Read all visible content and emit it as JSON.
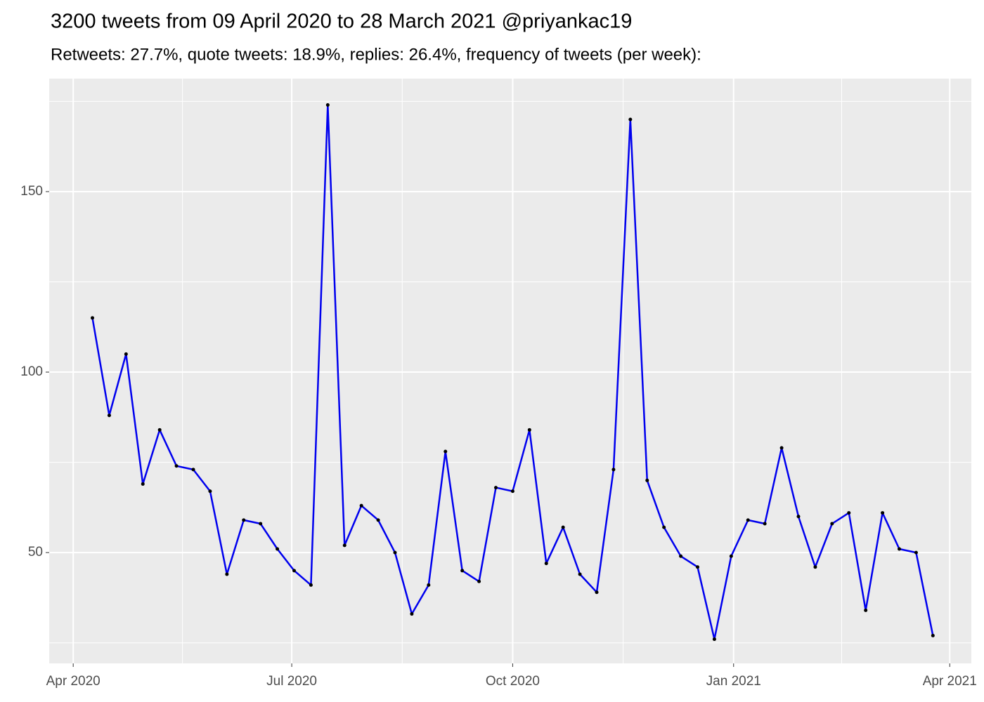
{
  "chart_data": {
    "type": "line",
    "title": "3200 tweets from 09 April 2020 to 28 March 2021 @priyankac19",
    "subtitle": "Retweets: 27.7%, quote tweets: 18.9%, replies: 26.4%, frequency of tweets (per week):",
    "x": [
      "2020-04-09",
      "2020-04-16",
      "2020-04-23",
      "2020-04-30",
      "2020-05-07",
      "2020-05-14",
      "2020-05-21",
      "2020-05-28",
      "2020-06-04",
      "2020-06-11",
      "2020-06-18",
      "2020-06-25",
      "2020-07-02",
      "2020-07-09",
      "2020-07-16",
      "2020-07-23",
      "2020-07-30",
      "2020-08-06",
      "2020-08-13",
      "2020-08-20",
      "2020-08-27",
      "2020-09-03",
      "2020-09-10",
      "2020-09-17",
      "2020-09-24",
      "2020-10-01",
      "2020-10-08",
      "2020-10-15",
      "2020-10-22",
      "2020-10-29",
      "2020-11-05",
      "2020-11-12",
      "2020-11-19",
      "2020-11-26",
      "2020-12-03",
      "2020-12-10",
      "2020-12-17",
      "2020-12-24",
      "2020-12-31",
      "2021-01-07",
      "2021-01-14",
      "2021-01-21",
      "2021-01-28",
      "2021-02-04",
      "2021-02-11",
      "2021-02-18",
      "2021-02-25",
      "2021-03-04",
      "2021-03-11",
      "2021-03-18",
      "2021-03-25"
    ],
    "series": [
      {
        "color": "#0000ee",
        "point_color": "#000000",
        "values": [
          115,
          88,
          105,
          69,
          84,
          74,
          73,
          67,
          44,
          59,
          58,
          51,
          45,
          41,
          174,
          52,
          63,
          59,
          50,
          33,
          41,
          78,
          45,
          42,
          68,
          67,
          84,
          47,
          57,
          44,
          39,
          73,
          170,
          70,
          57,
          49,
          46,
          26,
          49,
          59,
          58,
          79,
          60,
          46,
          58,
          61,
          34,
          61,
          51,
          50,
          27
        ]
      }
    ],
    "xlim": [
      "2020-03-22",
      "2021-04-10"
    ],
    "xticks": [
      {
        "value": "2020-04-01",
        "label": "Apr 2020"
      },
      {
        "value": "2020-07-01",
        "label": "Jul 2020"
      },
      {
        "value": "2020-10-01",
        "label": "Oct 2020"
      },
      {
        "value": "2021-01-01",
        "label": "Jan 2021"
      },
      {
        "value": "2021-04-01",
        "label": "Apr 2021"
      }
    ],
    "ylim": [
      19.3,
      181.3
    ],
    "yticks": [
      50,
      100,
      150
    ],
    "grid": true
  }
}
